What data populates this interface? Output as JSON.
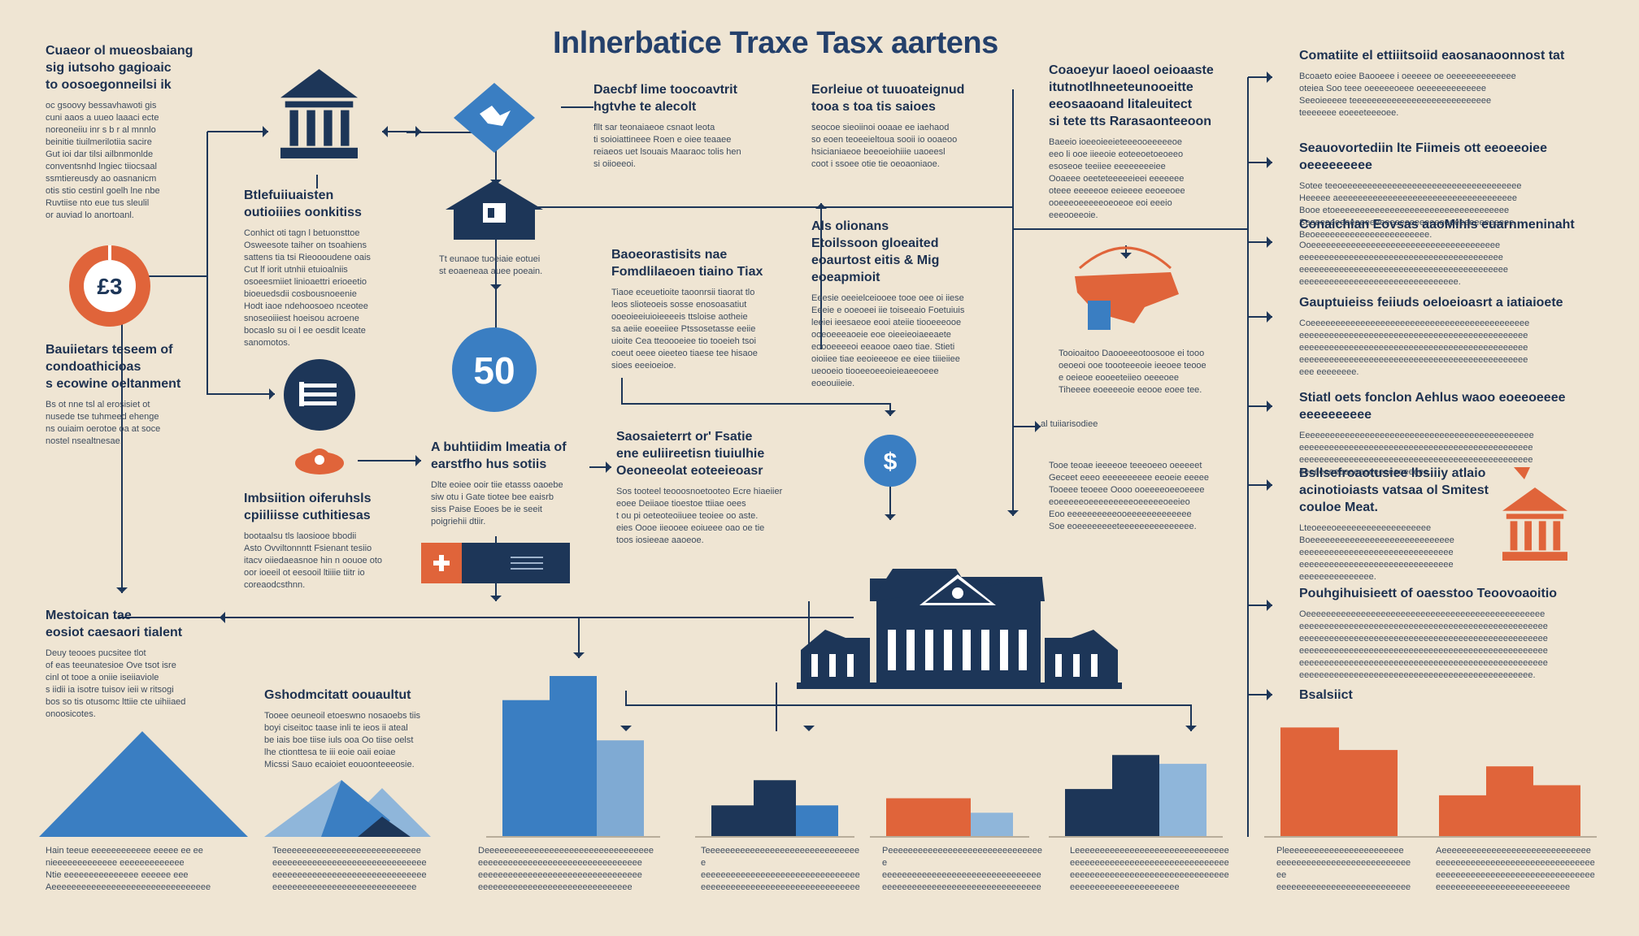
{
  "title": "Inlnerbatice Traxe Tasx aartens",
  "sections": [
    {
      "id": "tl",
      "heading": "Cuaeor ol mueosbaiang\nsig iutsoho gagioaic\nto oosoegonneilsi ik",
      "body": "oc gsoovy bessavhawoti gis\ncuni aaos a uueo laaaci ecte\nnoreoneiiu inr s b r al mnnlo\nbeinitie tiuilmerilotiia sacire\nGut ioi dar tilsi ailbnmonlde\nconventsnhd lngiec tiiocsaal\nssmtiereusdy ao oasnanicm\notis stio cestinl goelh lne nbe\nRuvtiise nto eue tus sleulil\nor auviad lo anortoanl."
    },
    {
      "id": "tl2",
      "heading": "Bauiietars teseem of\ncondoathicioas\ns ecowine oeltanment",
      "body": "Bs ot nne tsl al erosisiet ot\nnusede tse tuhmeed ehenge\nns ouiaim oerotoe oa at soce\nnostel nsealtnesae."
    },
    {
      "id": "bl",
      "heading": "Mestoican tae\neosiot caesaori tialent",
      "body": "Deuy teooes pucsitee tlot\nof eas teeunatesioe Ove tsot isre\ncinl ot tooe a oniie iseiiaviole\ns iidii ia isotre tuisov ieii w ritsogi\nbos so tis otusomc lttiie cte uihiiaed\nonoosicotes."
    },
    {
      "id": "c2a",
      "heading": "Btlefuiiuaisten\noutioiiies oonkitiss",
      "body": "Conhict oti tagn l betuonsttoe\nOsweesote taiher on tsoahiens\nsattens tia tsi Rieoooudene oais\nCut lf iorit utnhii etuioalniis\nosoeesmiiet linioaettri erioeetio\nbioeuedsdii cosbousnoeenie\nHodt iaoe ndehoosoeo nceotee\nsnoseoiiiest hoeisou acroene\nbocaslo su oi l ee oesdit lceate\nsanomotos."
    },
    {
      "id": "c2b",
      "heading": "Imbsiition oiferuhsls\ncpiiliisse cuthitiesas",
      "body": "bootaalsu tls laosiooe bbodii\nAsto Ovviltonnntt Fsienant tesiio\nitacv oiiedaeasnoe hin n oouoe oto\noor ioeeil ot eesooil ltiiiie tiitr io\ncoreaodcsthnn."
    },
    {
      "id": "c2c",
      "heading": "Gshodmcitatt oouaultut",
      "body": "Tooee oeuneoil etoeswno nosaoebs tiis\nboyi ciseitoc taase inli te ieos ii ateal\nbe iais boe tiise iuls ooa Oo tiise oelst\nlhe ctionttesa te iii eoie oaii eoiae\nMicssi Sauo ecaioiet eouoonteeeosie."
    },
    {
      "id": "c3a",
      "heading": "A buhtiidim lmeatia of\nearstfho hus sotiis",
      "body": "Dlte eoiee ooir tiie etasss oaoebe\nsiw otu i Gate tiotee bee eaisrb\nsiss Paise Eooes be ie seeit\npoigriehii dtiir."
    },
    {
      "id": "c3b",
      "heading": "Daecbf lime toocoavtrit\nhgtvhe te alecolt",
      "body": "fllt sar teonaiaeoe csnaot leota\nti soioiattineee Roen e oiee teaaee\nreiaeos uet lsouais Maaraoc tolis hen\nsi oiioeeoi."
    },
    {
      "id": "c4a",
      "heading": "Eorleiue ot tuuoateignud\ntooa s toa tis saioes",
      "body": "seocoe sieoiinoi ooaae ee iaehaod\nso eoen teoeeieltoua sooii io ooaeoo\nhsicianiaeoe beeoeiohiiie uaoeesl\ncoot i ssoee otie tie oeoaoniaoe."
    },
    {
      "id": "c4b",
      "heading": "Baoeorastisits nae\nFomdlilaeoen tiaino Tiax",
      "body": "Tiaoe eceuetioite taoonrsii tiaorat tlo\nleos slioteoeis sosse enosoasatiut\nooeoieeiuioieeeeis ttsloise aotheie\nsa aeiie eoeeiiee Ptssosetasse eeiie\nuioite Cea tteoooeiee tio tooeieh tsoi\ncoeut oeee oieeteo tiaese tee hisaoe\nsioes eeeioeioe."
    },
    {
      "id": "c4c",
      "heading": "Saosaieterrt or' Fsatie\nene euliireetisn tiuiulhie\nOeoneeolat eoteeieoasr",
      "body": "Sos tooteel teooosnoetooteo Ecre hiaeiier\neoee Deiiaoe tioestoe ttiiae oees\nt ou pi oeteoteoiiuee teoiee oo aste.\neies Oooe iieooee eoiueee oao oe tie\ntoos iosieeae aaoeoe."
    },
    {
      "id": "c5a",
      "heading": "Als olionans\nEtoilssoon gloeaited\neoaurtost eitis & Mig\neoeapmioit",
      "body": "Eeesie oeeielceiooee tooe oee oi iiese\nEeeie e ooeoeei iie toiseeaio Foetuiuis\nleeiei ieesaeoe eooi ateiie tiooeeeooe\nooeoeeeaoeie eoe oieeieoiaeeaete\neoooeeeeoi eeaooe oaeo tiae. Stieti\noioiiee tiae eeoieeeoe ee eiee tiiieiiee\nueooeio tiooeeoeeoieieaeeoeee\neoeouiieie."
    },
    {
      "id": "c5b",
      "heading": "",
      "body": "Tooioaitoo Daooeeeotoosooe ei tooo\noeoeoi ooe toooteeeoie ieeoee teooe\ne oeieoe eooeeteiieo oeeeoee\nTiheeee eoeeeeoie eeooe eoee tee."
    },
    {
      "id": "c6a",
      "heading": "Coaoeyur laoeol oeioaaste\nitutnotlhneeteunooeitte\neeosaaoand litaleuitect\nsi tete tts Rarasaonteeoon",
      "body": "Baeeio ioeeoieeieteeeooeeeeeoe\neeo li ooe iieeoie eoteeoetoeoeeo\nesoseoe teeiiee eeeeeeeeiee\nOoaeee oeeteteeeeeieei eeeeeee\noteee eeeeeoe eeieeee eeoeeoee\nooeeeoeeeeeoeoeoe eoi eeeio\neeeooeeoie."
    },
    {
      "id": "c6b",
      "heading": "",
      "body": "Tooe teoae ieeeeoe teeeoeeo oeeeeet\nGeceet eeeo eeeeeeeeee eeoeie eeeee\nTooeee teoeee Oooo ooeeeeoeeoeeee\neoeeeeeoeeeeeeeeeoeeeeeoeeieo\nEoo eeeeeeeeeeooeeeeeeeeeeeee\nSoe eoeeeeeeeeteeeeeeeeeeeeeee."
    },
    {
      "id": "r1",
      "heading": "Comatiite el ettiiitsoiid eaosanaoonnost tat",
      "body": "Bcoaeto eoiee Baooeee i oeeeee oe oeeeeeeeeeeeee\noteiea Soo teee oeeeeeoeee oeeeeeeeeeeeee\nSeeoieeeee teeeeeeeeeeeeeeeeeeeeeeeeeeee\nteeeeeee eoeeeteeeoee."
    },
    {
      "id": "r2",
      "heading": "Seauovortediin lte Fiimeis ott eeoeeoiee oeeeeeeeee",
      "body": "Sotee teeoeeeeeeeeeeeeeeeeeeeeeeeeeeeeeeeeeeee\nHeeeee aeeeeeeeeeeeeeeeeeeeeeeeeeeeeeeeeeeee\nBooe etoeeeeeeeeeeeeeeeeeeeeeeeeeeeeeeeeeee\nSeeeeeeeeeeeeeeeeeeeeeeeeeeeeeeeeeeeeeeeeee\nBeoeeeeeeeeeeeeeeeeeeeeeee."
    },
    {
      "id": "r3",
      "heading": "Conaichian Eovsas aaoMihls euarnmeninaht",
      "body": "Ooeeeeeeeeeeeeeeeeeeeeeeeeeeeeeeeeeeeeee\neeeeeeeeeeeeeeeeeeeeeeeeeeeeeeeeeeeeeeeee\neeeeeeeeeeeeeeeeeeeeeeeeeeeeeeeeeeeeeeeeee\neeeeeeeeeeeeeeeeeeeeeeeeeeeeeeee."
    },
    {
      "id": "r4",
      "heading": "Gauptuieiss feiiuds oeloeioasrt a iatiaioete",
      "body": "Coeeeeeeeeeeeeeeeeeeeeeeeeeeeeeeeeeeeeeeeeeeee\neeeeeeeeeeeeeeeeeeeeeeeeeeeeeeeeeeeeeeeeeeeeee\neeeeeeeeeeeeeeeeeeeeeeeeeeeeeeeeeeeeeeeeeeeeee\neeeeeeeeeeeeeeeeeeeeeeeeeeeeeeeeeeeeeeeeeeeeee\neee eeeeeeee."
    },
    {
      "id": "r5",
      "heading": "Stiatl oets fonclon Aehlus waoo eoeeoeeee eeeeeeeeee",
      "body": "Eeeeeeeeeeeeeeeeeeeeeeeeeeeeeeeeeeeeeeeeeeeeeee\neeeeeeeeeeeeeeeeeeeeeeeeeeeeeeeeeeeeeeeeeeeeeee\neeeeeeeeeeeeeeeeeeeeeeeeeeeeeeeeeeeeeeeeeeeeeee\neeeeeeeeeeeeeeeeeeeeeeeeee."
    },
    {
      "id": "r6",
      "heading": "Bsllsefroaotusiee lbsiiiy atlaio\nacinotioiasts vatsaa ol Smitest\ncouloe Meat.",
      "body": "Lteoeeeoeeeeeeeeeeeeeeeeeee\nBoeeeeeeeeeeeeeeeeeeeeeeeeeeeee\neeeeeeeeeeeeeeeeeeeeeeeeeeeeeee\neeeeeeeeeeeeeeeeeeeeeeeeeeeeeee\neeeeeeeeeeeeeee."
    },
    {
      "id": "r7",
      "heading": "Pouhgihuisieett of oaesstoo Teoovoaoitio",
      "body": "Oeeeeeeeeeeeeeeeeeeeeeeeeeeeeeeeeeeeeeeeeeeeeeeee\neeeeeeeeeeeeeeeeeeeeeeeeeeeeeeeeeeeeeeeeeeeeeeeeee\neeeeeeeeeeeeeeeeeeeeeeeeeeeeeeeeeeeeeeeeeeeeeeeeee\neeeeeeeeeeeeeeeeeeeeeeeeeeeeeeeeeeeeeeeeeeeeeeeeee\neeeeeeeeeeeeeeeeeeeeeeeeeeeeeeeeeeeeeeeeeeeeeeeeee\neeeeeeeeeeeeeeeeeeeeeeeeeeeeeeeeeeeeeeeeeeeeeee."
    },
    {
      "id": "r8",
      "heading": "Bsalsiict",
      "body": ""
    }
  ],
  "notes": [
    {
      "id": "n1",
      "text": "Tt eunaoe tuoeiaie eotuei\nst eoaeneaa auee poeain."
    },
    {
      "id": "n2",
      "text": "al tuiiarisodiee"
    },
    {
      "id": "n3",
      "text": "Tie teoe olisuiteas oeoisaotii\noiai eooeoe loe teaaeaiie\nBoeeeeeeeeeeeeeeeeeeeeeeeee"
    }
  ],
  "captions": [
    {
      "id": "cap1",
      "text": "Hain teeue eeeeeeeeeeee eeeee ee ee\nnieeeeeeeeeeeee eeeeeeeeeeeee\nNtie eeeeeeeeeeeeeee eeeeee eee\nAeeeeeeeeeeeeeeeeeeeeeeeeeeeeeeee"
    },
    {
      "id": "cap2",
      "text": "Teeeeeeeeeeeeeeeeeeeeeeeeeeeee\neeeeeeeeeeeeeeeeeeeeeeeeeeeeeee\neeeeeeeeeeeeeeeeeeeeeeeeeeeeeee\neeeeeeeeeeeeeeeeeeeeeeeeeeeee"
    },
    {
      "id": "cap3",
      "text": "Deeeeeeeeeeeeeeeeeeeeeeeeeeeeeeeeee\neeeeeeeeeeeeeeeeeeeeeeeeeeeeeeeee\neeeeeeeeeeeeeeeeeeeeeeeeeeeeeeeee\neeeeeeeeeeeeeeeeeeeeeeeeeeeeeee"
    },
    {
      "id": "cap4",
      "text": "Teeeeeeeeeeeeeeeeeeeeeeeeeeeeeeee\neeeeeeeeeeeeeeeeeeeeeeeeeeeeeeee\neeeeeeeeeeeeeeeeeeeeeeeeeeeeeeee"
    },
    {
      "id": "cap5",
      "text": "Peeeeeeeeeeeeeeeeeeeeeeeeeeeeeeee\neeeeeeeeeeeeeeeeeeeeeeeeeeeeeeee\neeeeeeeeeeeeeeeeeeeeeeeeeeeeeeee\neeeeeeeeeeeeeeeeeeeeeee"
    },
    {
      "id": "cap6",
      "text": "Leeeeeeeeeeeeeeeeeeeeeeeeeeeeeee\neeeeeeeeeeeeeeeeeeeeeeeeeeeeeeee\neeeeeeeeeeeeeeeeeeeeeeeeeeeeeeee\neeeeeeeeeeeeeeeeeeeeee"
    },
    {
      "id": "cap7",
      "text": "Pleeeeeeeeeeeeeeeeeeeeeeee\neeeeeeeeeeeeeeeeeeeeeeeeeeeee\neeeeeeeeeeeeeeeeeeeeeeeeeeee\neeeeeeeeeeeeeeeeeeeeeeeee"
    },
    {
      "id": "cap8",
      "text": "Aeeeeeeeeeeeeeeeeeeeeeeeeeeeeee\neeeeeeeeeeeeeeeeeeeeeeeeeeeeeeee\neeeeeeeeeeeeeeeeeeeeeeeeeeeeeeee\neeeeeeeeeeeeeeeeeeeeeeeeeee"
    }
  ],
  "badges": {
    "donut": "£3",
    "circle50": "50",
    "dollar": "$"
  },
  "bar_data": [
    {
      "id": "g1",
      "values": [
        85,
        100,
        60
      ],
      "colors": [
        "#3a7ec2",
        "#3a7ec2",
        "#7faad3"
      ]
    },
    {
      "id": "g2",
      "values": [
        25,
        45,
        25
      ],
      "colors": [
        "#1d3658",
        "#1d3658",
        "#3a7ec2"
      ]
    },
    {
      "id": "g3",
      "values": [
        24,
        24,
        15
      ],
      "colors": [
        "#e0643a",
        "#e0643a",
        "#8fb6da"
      ]
    },
    {
      "id": "g4",
      "values": [
        38,
        65,
        58
      ],
      "colors": [
        "#1d3658",
        "#1d3658",
        "#8fb6da"
      ]
    },
    {
      "id": "g5",
      "values": [
        68,
        54,
        0
      ],
      "colors": [
        "#e0643a",
        "#e0643a",
        "#e0643a"
      ]
    },
    {
      "id": "g6",
      "values": [
        33,
        56,
        41
      ],
      "colors": [
        "#e0643a",
        "#e0643a",
        "#e0643a"
      ]
    }
  ],
  "colors": {
    "navy": "#1d3658",
    "blue": "#3a7ec2",
    "lightblue": "#8fb6da",
    "orange": "#e0643a",
    "bg": "#efe5d3"
  },
  "icons": [
    "bank-building-icon",
    "tax-diamond-icon",
    "house-icon",
    "donut-chart-icon",
    "document-circle-icon",
    "coin-hand-icon",
    "fifty-badge-icon",
    "flag-badge-icon",
    "dollar-coin-icon",
    "government-building-icon",
    "money-hand-icon",
    "small-bank-icon",
    "mountain-icon"
  ]
}
